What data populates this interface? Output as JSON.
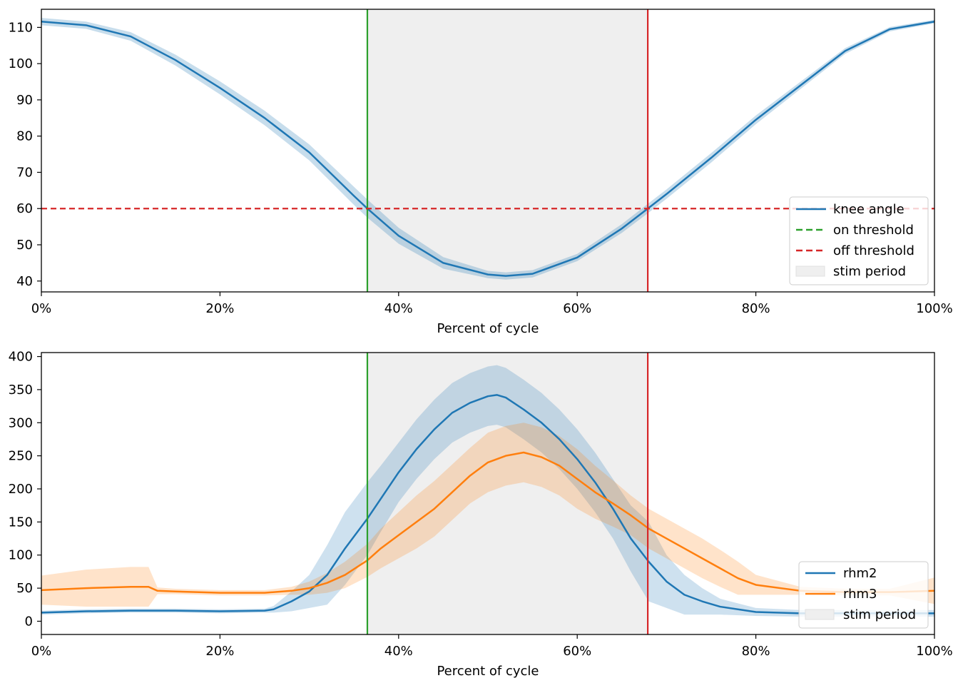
{
  "colors": {
    "knee": "#1f77b4",
    "rhm2": "#1f77b4",
    "rhm3": "#ff7f0e",
    "on_threshold": "#2ca02c",
    "off_threshold": "#d62728",
    "stim_period": "#efefef"
  },
  "chart_data": [
    {
      "type": "line",
      "xlabel": "Percent of cycle",
      "ylabel": "",
      "xlim": [
        0,
        100
      ],
      "ylim": [
        37,
        115
      ],
      "x_ticks": [
        "0%",
        "20%",
        "40%",
        "60%",
        "80%",
        "100%"
      ],
      "y_ticks": [
        "40",
        "50",
        "60",
        "70",
        "80",
        "90",
        "100",
        "110"
      ],
      "grid": false,
      "stim_period": [
        36.5,
        67.9
      ],
      "on_threshold_x": 36.5,
      "off_threshold_x": 67.9,
      "off_threshold_y": 60,
      "legend_position": "lower-right",
      "legend": [
        "knee angle",
        "on threshold",
        "off threshold",
        "stim period"
      ],
      "series": [
        {
          "name": "knee angle",
          "x": [
            0,
            5,
            10,
            15,
            20,
            25,
            30,
            35,
            36.5,
            40,
            45,
            50,
            52,
            55,
            60,
            65,
            67.9,
            70,
            75,
            80,
            85,
            90,
            95,
            100
          ],
          "values": [
            111.6,
            110.6,
            107.5,
            101.0,
            93.3,
            85.0,
            75.5,
            63.5,
            60.0,
            52.5,
            45.0,
            41.8,
            41.4,
            42.0,
            46.5,
            54.5,
            60.0,
            64.0,
            74.0,
            84.5,
            94.0,
            103.5,
            109.5,
            111.6
          ],
          "band": [
            1.0,
            1.0,
            1.2,
            1.5,
            1.8,
            2.0,
            2.2,
            2.5,
            2.5,
            2.2,
            1.6,
            1.0,
            1.0,
            1.0,
            1.0,
            1.2,
            1.3,
            1.3,
            1.3,
            1.2,
            1.0,
            0.8,
            0.6,
            0.5
          ]
        }
      ]
    },
    {
      "type": "line",
      "xlabel": "Percent of cycle",
      "ylabel": "",
      "xlim": [
        0,
        100
      ],
      "ylim": [
        -20,
        406
      ],
      "x_ticks": [
        "0%",
        "20%",
        "40%",
        "60%",
        "80%",
        "100%"
      ],
      "y_ticks": [
        "0",
        "50",
        "100",
        "150",
        "200",
        "250",
        "300",
        "350",
        "400"
      ],
      "grid": false,
      "stim_period": [
        36.5,
        67.9
      ],
      "on_threshold_x": 36.5,
      "off_threshold_x": 67.9,
      "legend_position": "lower-right",
      "legend": [
        "rhm2",
        "rhm3",
        "stim period"
      ],
      "series": [
        {
          "name": "rhm2",
          "x": [
            0,
            5,
            10,
            15,
            20,
            25,
            26,
            28,
            30,
            32,
            34,
            36.5,
            38,
            40,
            42,
            44,
            46,
            48,
            50,
            51,
            52,
            54,
            56,
            58,
            60,
            62,
            64,
            66,
            68,
            70,
            72,
            74,
            76,
            80,
            85,
            90,
            95,
            100
          ],
          "values": [
            13,
            15,
            16,
            16,
            15,
            16,
            18,
            30,
            45,
            70,
            110,
            155,
            185,
            225,
            260,
            290,
            315,
            330,
            340,
            342,
            338,
            320,
            300,
            275,
            245,
            210,
            170,
            125,
            90,
            60,
            40,
            30,
            22,
            14,
            12,
            12,
            12,
            12
          ],
          "band": [
            3,
            3,
            3,
            3,
            3,
            3,
            5,
            15,
            25,
            45,
            55,
            55,
            50,
            45,
            45,
            45,
            45,
            45,
            45,
            45,
            45,
            45,
            45,
            45,
            45,
            45,
            45,
            50,
            60,
            40,
            30,
            20,
            12,
            6,
            5,
            5,
            5,
            5
          ]
        },
        {
          "name": "rhm3",
          "x": [
            0,
            5,
            10,
            12,
            13,
            15,
            20,
            25,
            28,
            30,
            32,
            34,
            36.5,
            38,
            40,
            42,
            44,
            46,
            48,
            50,
            52,
            54,
            56,
            58,
            60,
            62,
            64,
            66,
            68,
            70,
            72,
            74,
            76,
            78,
            80,
            85,
            90,
            95,
            100
          ],
          "values": [
            47,
            50,
            52,
            52,
            46,
            45,
            43,
            43,
            46,
            50,
            58,
            70,
            92,
            110,
            130,
            150,
            170,
            195,
            220,
            240,
            250,
            255,
            248,
            235,
            215,
            195,
            178,
            160,
            140,
            125,
            110,
            95,
            80,
            65,
            55,
            46,
            44,
            44,
            46
          ],
          "band": [
            22,
            28,
            30,
            30,
            5,
            4,
            4,
            4,
            6,
            10,
            15,
            20,
            25,
            30,
            35,
            40,
            42,
            42,
            42,
            45,
            45,
            45,
            45,
            45,
            45,
            40,
            35,
            30,
            30,
            30,
            30,
            30,
            28,
            25,
            15,
            6,
            5,
            5,
            20
          ]
        }
      ]
    }
  ]
}
